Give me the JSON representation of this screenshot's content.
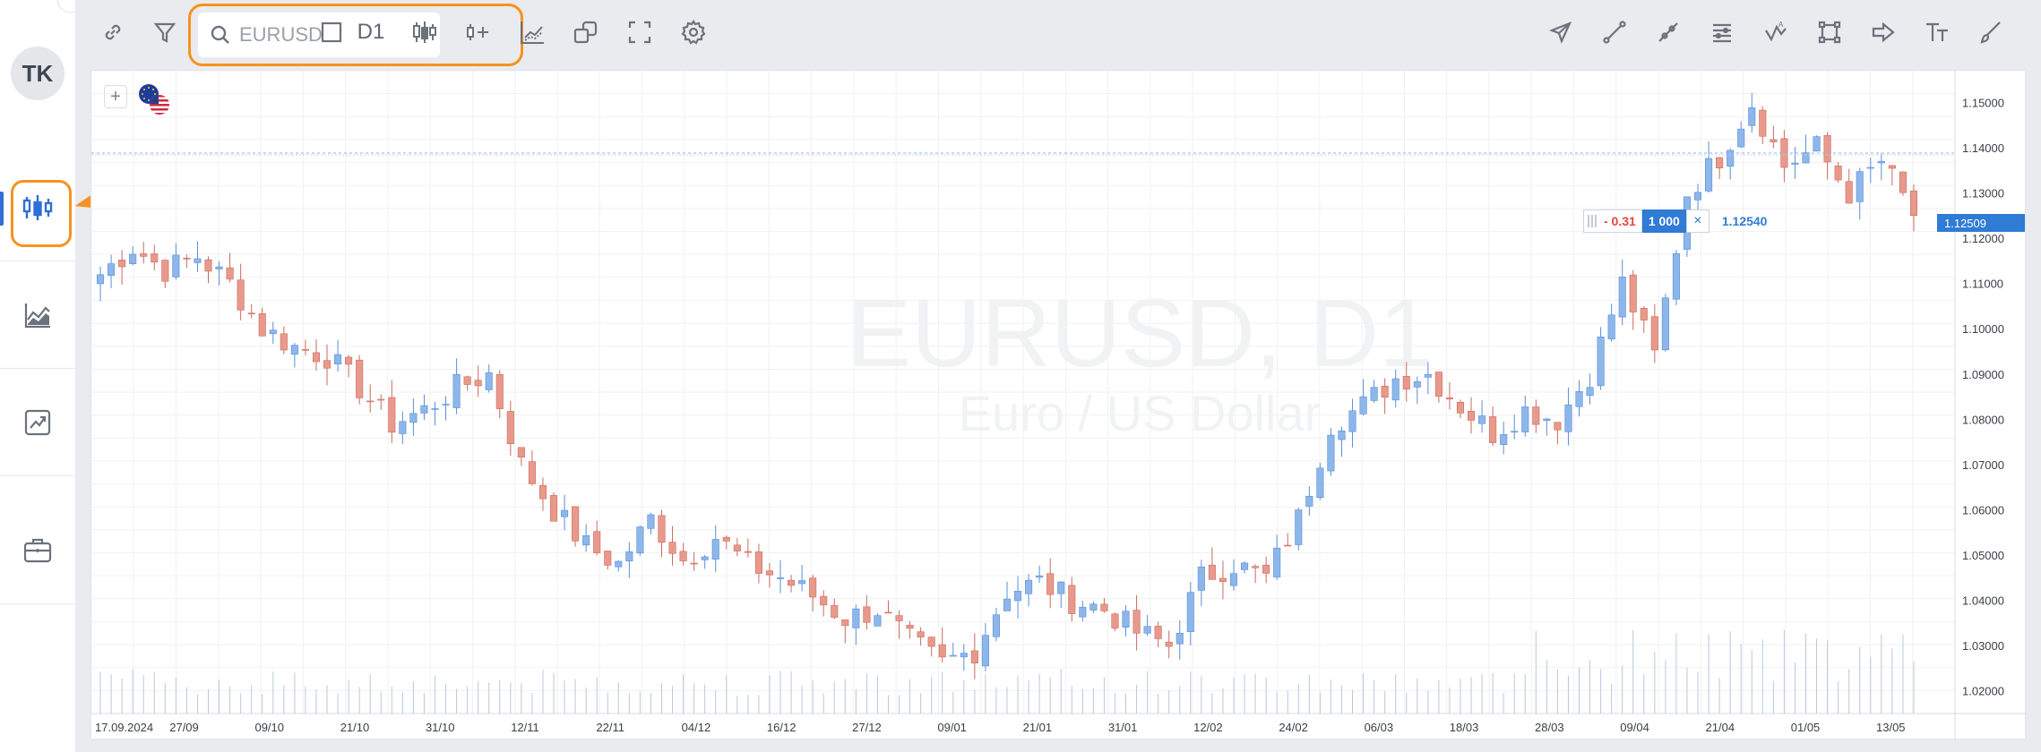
{
  "sidebar": {
    "avatar_initials": "TK",
    "items": [
      {
        "name": "chart",
        "icon": "candlestick-chart-icon",
        "active": true
      },
      {
        "name": "analytics",
        "icon": "area-chart-icon",
        "active": false
      },
      {
        "name": "trading",
        "icon": "trend-chart-icon",
        "active": false
      },
      {
        "name": "portfolio",
        "icon": "briefcase-icon",
        "active": false
      }
    ]
  },
  "toolbar": {
    "search": {
      "value": "EURUSD",
      "placeholder": ""
    },
    "timeframe": "D1",
    "left_icons": [
      "link-icon",
      "filter-icon",
      "search-icon",
      "square-icon",
      "candles-icon",
      "add-indicator-icon",
      "indicators-icon",
      "compare-icon",
      "fullscreen-icon",
      "settings-icon"
    ],
    "drawing_icons": [
      "send-icon",
      "trend-line-icon",
      "ray-icon",
      "fibonacci-icon",
      "pattern-icon",
      "rectangle-icon",
      "arrow-icon",
      "text-icon",
      "brush-icon"
    ]
  },
  "chart": {
    "watermark_title": "EURUSD, D1",
    "watermark_subtitle": "Euro / US Dollar",
    "order": {
      "pl": "- 0.31",
      "quantity": "1 000",
      "close_symbol": "×",
      "price": "1.12540"
    },
    "current_price": "1.12509",
    "colors": {
      "up": "#8db6ea",
      "down": "#e9998b",
      "accent": "#2f7bd6",
      "highlight": "#f5931e"
    }
  },
  "chart_data": {
    "type": "candlestick",
    "symbol": "EURUSD",
    "timeframe": "D1",
    "y_ticks": [
      "1.15000",
      "1.14000",
      "1.13000",
      "1.12000",
      "1.11000",
      "1.10000",
      "1.09000",
      "1.08000",
      "1.07000",
      "1.06000",
      "1.05000",
      "1.04000",
      "1.03000",
      "1.02000"
    ],
    "ylim": [
      1.015,
      1.157
    ],
    "x_ticks": [
      "17.09.2024",
      "27/09",
      "09/10",
      "21/10",
      "31/10",
      "12/11",
      "22/11",
      "04/12",
      "16/12",
      "27/12",
      "09/01",
      "21/01",
      "31/01",
      "12/02",
      "24/02",
      "06/03",
      "18/03",
      "28/03",
      "09/04",
      "21/04",
      "01/05",
      "13/05"
    ],
    "close_path": [
      1.112,
      1.118,
      1.113,
      1.116,
      1.11,
      1.1,
      1.096,
      1.094,
      1.087,
      1.079,
      1.082,
      1.087,
      1.09,
      1.07,
      1.06,
      1.052,
      1.048,
      1.058,
      1.049,
      1.054,
      1.048,
      1.045,
      1.041,
      1.036,
      1.038,
      1.031,
      1.026,
      1.029,
      1.042,
      1.044,
      1.04,
      1.038,
      1.033,
      1.03,
      1.045,
      1.048,
      1.045,
      1.058,
      1.079,
      1.083,
      1.089,
      1.09,
      1.083,
      1.077,
      1.082,
      1.08,
      1.09,
      1.11,
      1.094,
      1.13,
      1.138,
      1.15,
      1.136,
      1.14,
      1.13,
      1.137,
      1.125
    ]
  }
}
